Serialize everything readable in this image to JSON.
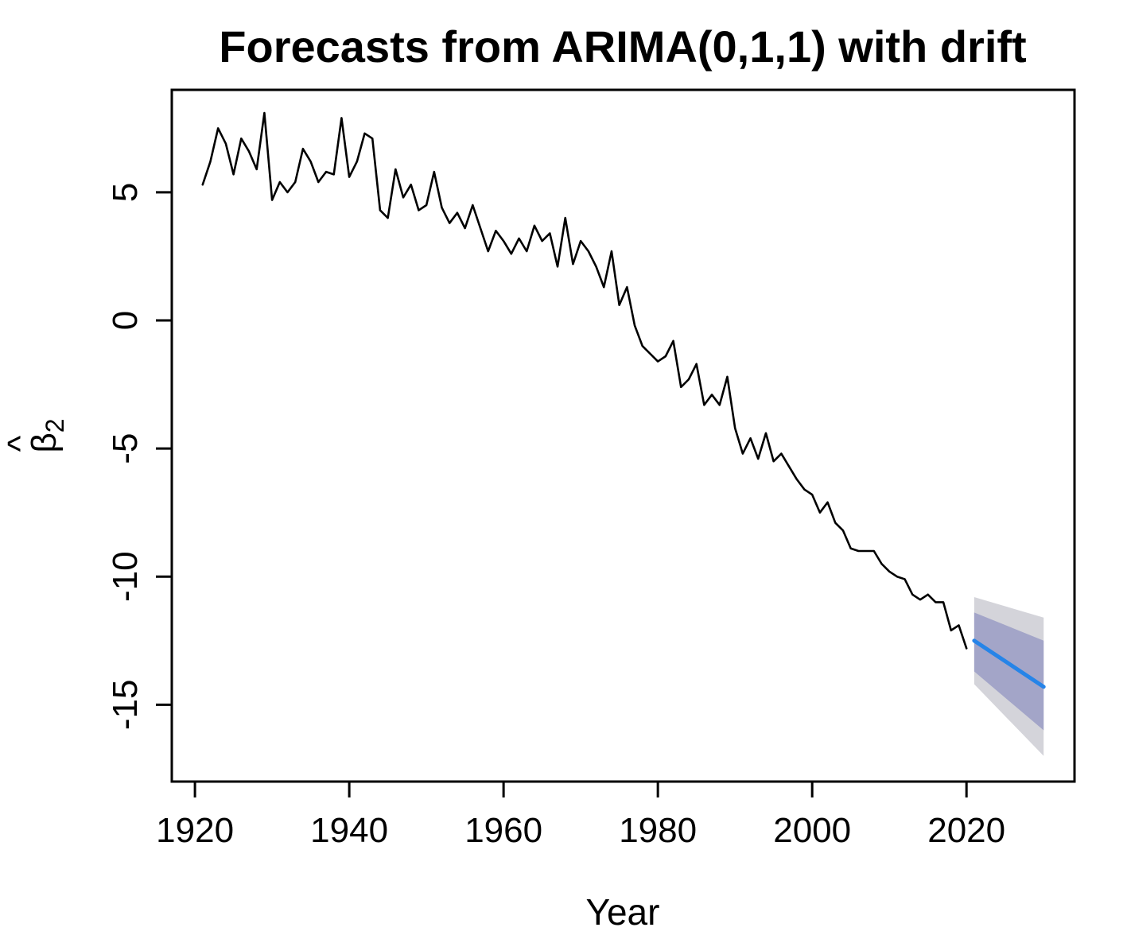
{
  "chart_data": {
    "type": "line",
    "title": "Forecasts from ARIMA(0,1,1) with drift",
    "xlabel": "Year",
    "ylabel": "β̂2",
    "ylabel_parts": {
      "hat": "^",
      "symbol": "β",
      "subscript": "2"
    },
    "xlim": [
      1917,
      2034
    ],
    "ylim": [
      -18,
      9
    ],
    "xticks": [
      1920,
      1940,
      1960,
      1980,
      2000,
      2020
    ],
    "yticks": [
      5,
      0,
      -5,
      -10,
      -15
    ],
    "grid": false,
    "colors": {
      "observed": "#000000",
      "forecast": "#2684e8",
      "band80": "#a3a5c8",
      "band95": "#d4d4da",
      "frame": "#000000"
    },
    "series": [
      {
        "name": "observed",
        "x": [
          1921,
          1922,
          1923,
          1924,
          1925,
          1926,
          1927,
          1928,
          1929,
          1930,
          1931,
          1932,
          1933,
          1934,
          1935,
          1936,
          1937,
          1938,
          1939,
          1940,
          1941,
          1942,
          1943,
          1944,
          1945,
          1946,
          1947,
          1948,
          1949,
          1950,
          1951,
          1952,
          1953,
          1954,
          1955,
          1956,
          1957,
          1958,
          1959,
          1960,
          1961,
          1962,
          1963,
          1964,
          1965,
          1966,
          1967,
          1968,
          1969,
          1970,
          1971,
          1972,
          1973,
          1974,
          1975,
          1976,
          1977,
          1978,
          1979,
          1980,
          1981,
          1982,
          1983,
          1984,
          1985,
          1986,
          1987,
          1988,
          1989,
          1990,
          1991,
          1992,
          1993,
          1994,
          1995,
          1996,
          1997,
          1998,
          1999,
          2000,
          2001,
          2002,
          2003,
          2004,
          2005,
          2006,
          2007,
          2008,
          2009,
          2010,
          2011,
          2012,
          2013,
          2014,
          2015,
          2016,
          2017,
          2018,
          2019,
          2020
        ],
        "values": [
          5.3,
          6.2,
          7.5,
          6.9,
          5.7,
          7.1,
          6.6,
          5.9,
          8.1,
          4.7,
          5.4,
          5.0,
          5.4,
          6.7,
          6.2,
          5.4,
          5.8,
          5.7,
          7.9,
          5.6,
          6.2,
          7.3,
          7.1,
          4.3,
          4.0,
          5.9,
          4.8,
          5.3,
          4.3,
          4.5,
          5.8,
          4.4,
          3.8,
          4.2,
          3.6,
          4.5,
          3.6,
          2.7,
          3.5,
          3.1,
          2.6,
          3.2,
          2.7,
          3.7,
          3.1,
          3.4,
          2.1,
          4.0,
          2.2,
          3.1,
          2.7,
          2.1,
          1.3,
          2.7,
          0.6,
          1.3,
          -0.2,
          -1.0,
          -1.3,
          -1.6,
          -1.4,
          -0.8,
          -2.6,
          -2.3,
          -1.7,
          -3.3,
          -2.9,
          -3.3,
          -2.2,
          -4.2,
          -5.2,
          -4.6,
          -5.4,
          -4.4,
          -5.5,
          -5.2,
          -5.7,
          -6.2,
          -6.6,
          -6.8,
          -7.5,
          -7.1,
          -7.9,
          -8.2,
          -8.9,
          -9.0,
          -9.0,
          -9.0,
          -9.5,
          -9.8,
          -10.0,
          -10.1,
          -10.7,
          -10.9,
          -10.7,
          -11.0,
          -11.0,
          -12.1,
          -11.9,
          -12.8
        ]
      },
      {
        "name": "forecast",
        "x": [
          2021,
          2030
        ],
        "values": [
          -12.5,
          -14.3
        ]
      }
    ],
    "bands": [
      {
        "name": "95%",
        "x": [
          2021,
          2030
        ],
        "lower": [
          -14.2,
          -17.0
        ],
        "upper": [
          -10.8,
          -11.6
        ]
      },
      {
        "name": "80%",
        "x": [
          2021,
          2030
        ],
        "lower": [
          -13.7,
          -16.0
        ],
        "upper": [
          -11.4,
          -12.5
        ]
      }
    ]
  }
}
